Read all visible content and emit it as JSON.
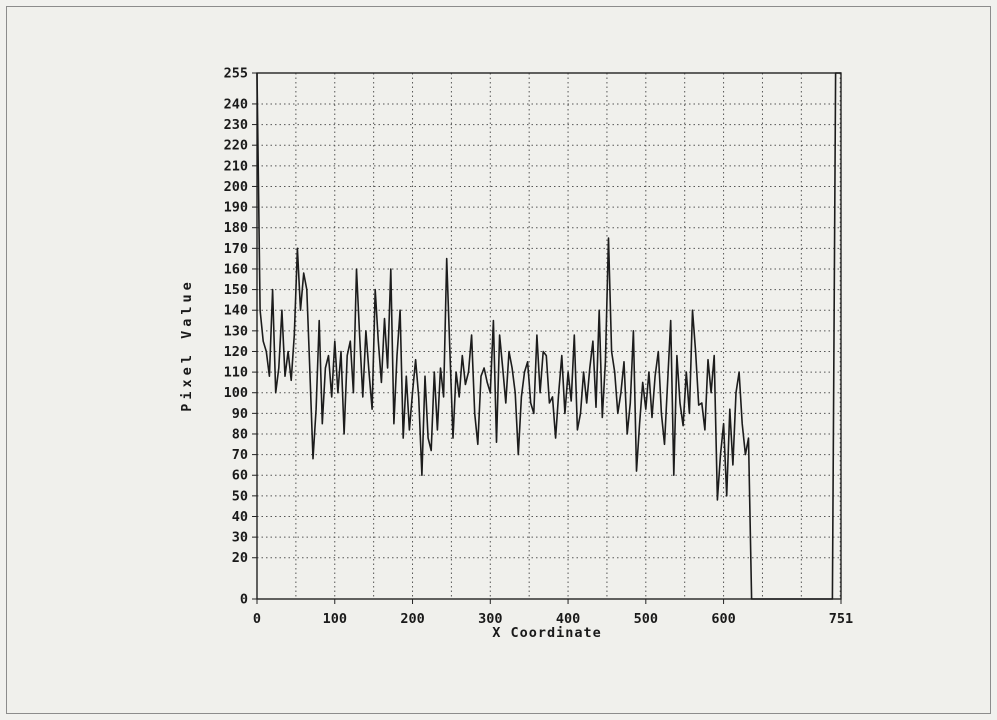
{
  "chart_data": {
    "type": "line",
    "title": "",
    "xlabel": "X Coordinate",
    "ylabel": "Pixel Value",
    "xlim": [
      0,
      751
    ],
    "ylim": [
      0,
      255
    ],
    "grid": true,
    "x_ticks": [
      0,
      100,
      200,
      300,
      400,
      500,
      600,
      751
    ],
    "y_ticks": [
      0,
      20,
      30,
      40,
      50,
      60,
      70,
      80,
      90,
      100,
      110,
      120,
      130,
      140,
      150,
      160,
      170,
      180,
      190,
      200,
      210,
      220,
      230,
      240,
      255
    ],
    "series": [
      {
        "x": [
          0,
          4,
          8,
          12,
          16,
          20,
          24,
          28,
          32,
          36,
          40,
          44,
          48,
          52,
          56,
          60,
          64,
          68,
          72,
          76,
          80,
          84,
          88,
          92,
          96,
          100,
          104,
          108,
          112,
          116,
          120,
          124,
          128,
          132,
          136,
          140,
          144,
          148,
          152,
          156,
          160,
          164,
          168,
          172,
          176,
          180,
          184,
          188,
          192,
          196,
          200,
          204,
          208,
          212,
          216,
          220,
          224,
          228,
          232,
          236,
          240,
          244,
          248,
          252,
          256,
          260,
          264,
          268,
          272,
          276,
          280,
          284,
          288,
          292,
          296,
          300,
          304,
          308,
          312,
          316,
          320,
          324,
          328,
          332,
          336,
          340,
          344,
          348,
          352,
          356,
          360,
          364,
          368,
          372,
          376,
          380,
          384,
          388,
          392,
          396,
          400,
          404,
          408,
          412,
          416,
          420,
          424,
          428,
          432,
          436,
          440,
          444,
          448,
          452,
          456,
          460,
          464,
          468,
          472,
          476,
          480,
          484,
          488,
          492,
          496,
          500,
          504,
          508,
          512,
          516,
          520,
          524,
          528,
          532,
          536,
          540,
          544,
          548,
          552,
          556,
          560,
          564,
          568,
          572,
          576,
          580,
          584,
          588,
          592,
          596,
          600,
          604,
          608,
          612,
          616,
          620,
          624,
          628,
          632,
          636,
          640,
          644,
          648,
          652,
          656,
          660,
          664,
          668,
          672,
          676,
          680,
          684,
          688,
          692,
          696,
          700,
          704,
          708,
          712,
          716,
          720,
          724,
          728,
          732,
          736,
          740,
          744,
          748,
          751
        ],
        "values": [
          255,
          140,
          125,
          120,
          108,
          150,
          100,
          112,
          140,
          108,
          120,
          106,
          128,
          170,
          140,
          158,
          150,
          110,
          68,
          92,
          135,
          85,
          112,
          118,
          98,
          125,
          100,
          120,
          80,
          118,
          125,
          100,
          160,
          128,
          98,
          130,
          110,
          92,
          150,
          125,
          105,
          136,
          112,
          160,
          85,
          118,
          140,
          78,
          108,
          82,
          100,
          116,
          98,
          60,
          108,
          78,
          72,
          110,
          82,
          112,
          98,
          165,
          120,
          78,
          110,
          98,
          118,
          104,
          110,
          128,
          90,
          75,
          108,
          112,
          105,
          100,
          135,
          76,
          128,
          112,
          95,
          120,
          112,
          100,
          70,
          98,
          110,
          115,
          95,
          90,
          128,
          100,
          120,
          118,
          95,
          98,
          78,
          100,
          118,
          90,
          110,
          96,
          128,
          82,
          90,
          110,
          95,
          112,
          125,
          93,
          140,
          88,
          115,
          175,
          120,
          110,
          90,
          100,
          115,
          80,
          95,
          130,
          62,
          85,
          105,
          92,
          110,
          88,
          108,
          120,
          90,
          75,
          105,
          135,
          60,
          118,
          95,
          84,
          110,
          90,
          140,
          120,
          94,
          95,
          82,
          116,
          100,
          118,
          48,
          70,
          85,
          50,
          92,
          65,
          100,
          110,
          85,
          70,
          78,
          0,
          0,
          0,
          0,
          0,
          0,
          0,
          0,
          0,
          0,
          0,
          0,
          0,
          0,
          0,
          0,
          0,
          0,
          0,
          0,
          0,
          0,
          0,
          0,
          0,
          0,
          0,
          255,
          255,
          255
        ]
      }
    ]
  }
}
